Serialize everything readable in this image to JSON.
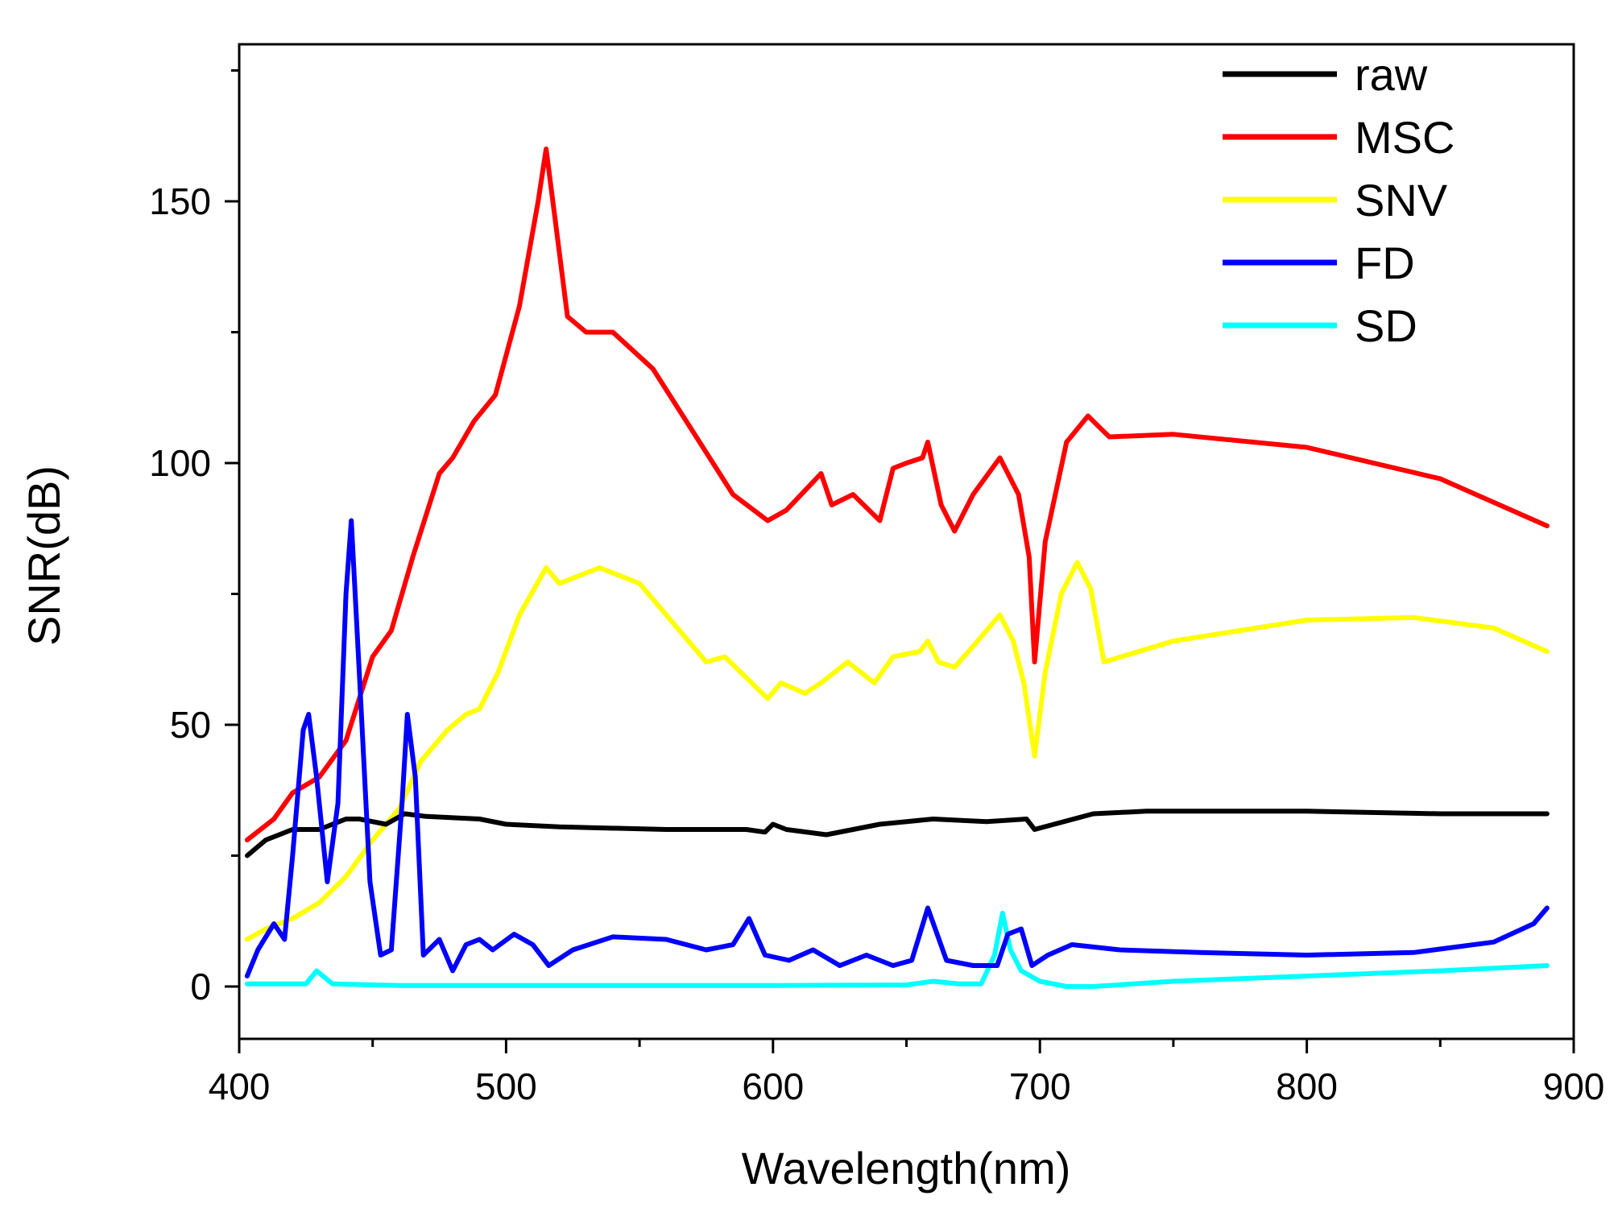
{
  "chart_data": {
    "type": "line",
    "title": "",
    "xlabel": "Wavelength(nm)",
    "ylabel": "SNR(dB)",
    "xlim": [
      400,
      900
    ],
    "ylim": [
      -10,
      180
    ],
    "xticks": [
      400,
      500,
      600,
      700,
      800,
      900
    ],
    "yticks": [
      0,
      50,
      100,
      150
    ],
    "xtick_labels": [
      "400",
      "500",
      "600",
      "700",
      "800",
      "900"
    ],
    "ytick_labels": [
      "0",
      "50",
      "100",
      "150"
    ],
    "legend_position": "top-right",
    "series": [
      {
        "name": "raw",
        "color": "#000000",
        "points": [
          [
            403,
            25
          ],
          [
            410,
            28
          ],
          [
            420,
            30
          ],
          [
            430,
            30
          ],
          [
            440,
            32
          ],
          [
            445,
            32
          ],
          [
            455,
            31
          ],
          [
            462,
            33
          ],
          [
            470,
            32.5
          ],
          [
            490,
            32
          ],
          [
            500,
            31
          ],
          [
            520,
            30.5
          ],
          [
            560,
            30
          ],
          [
            590,
            30
          ],
          [
            597,
            29.5
          ],
          [
            600,
            31
          ],
          [
            605,
            30
          ],
          [
            620,
            29
          ],
          [
            640,
            31
          ],
          [
            660,
            32
          ],
          [
            680,
            31.5
          ],
          [
            695,
            32
          ],
          [
            698,
            30
          ],
          [
            720,
            33
          ],
          [
            740,
            33.5
          ],
          [
            800,
            33.5
          ],
          [
            850,
            33
          ],
          [
            890,
            33
          ]
        ]
      },
      {
        "name": "MSC",
        "color": "#ff0000",
        "points": [
          [
            403,
            28
          ],
          [
            413,
            32
          ],
          [
            420,
            37
          ],
          [
            430,
            40
          ],
          [
            440,
            47
          ],
          [
            445,
            55
          ],
          [
            450,
            63
          ],
          [
            457,
            68
          ],
          [
            465,
            82
          ],
          [
            475,
            98
          ],
          [
            480,
            101
          ],
          [
            488,
            108
          ],
          [
            496,
            113
          ],
          [
            505,
            130
          ],
          [
            512,
            150
          ],
          [
            515,
            160
          ],
          [
            518,
            148
          ],
          [
            523,
            128
          ],
          [
            530,
            125
          ],
          [
            540,
            125
          ],
          [
            555,
            118
          ],
          [
            570,
            106
          ],
          [
            585,
            94
          ],
          [
            598,
            89
          ],
          [
            605,
            91
          ],
          [
            618,
            98
          ],
          [
            622,
            92
          ],
          [
            630,
            94
          ],
          [
            640,
            89
          ],
          [
            645,
            99
          ],
          [
            650,
            100
          ],
          [
            656,
            101
          ],
          [
            658,
            104
          ],
          [
            663,
            92
          ],
          [
            668,
            87
          ],
          [
            675,
            94
          ],
          [
            685,
            101
          ],
          [
            692,
            94
          ],
          [
            696,
            82
          ],
          [
            698,
            62
          ],
          [
            702,
            85
          ],
          [
            710,
            104
          ],
          [
            718,
            109
          ],
          [
            722,
            107
          ],
          [
            726,
            105
          ],
          [
            750,
            105.5
          ],
          [
            800,
            103
          ],
          [
            850,
            97
          ],
          [
            890,
            88
          ]
        ]
      },
      {
        "name": "SNV",
        "color": "#ffff00",
        "points": [
          [
            403,
            9
          ],
          [
            410,
            11
          ],
          [
            420,
            13
          ],
          [
            430,
            16
          ],
          [
            440,
            21
          ],
          [
            450,
            28
          ],
          [
            460,
            34
          ],
          [
            468,
            43
          ],
          [
            478,
            49
          ],
          [
            485,
            52
          ],
          [
            490,
            53
          ],
          [
            497,
            60
          ],
          [
            505,
            71
          ],
          [
            515,
            80
          ],
          [
            520,
            77
          ],
          [
            535,
            80
          ],
          [
            550,
            77
          ],
          [
            565,
            68
          ],
          [
            575,
            62
          ],
          [
            582,
            63
          ],
          [
            590,
            59
          ],
          [
            598,
            55
          ],
          [
            603,
            58
          ],
          [
            612,
            56
          ],
          [
            618,
            58
          ],
          [
            628,
            62
          ],
          [
            638,
            58
          ],
          [
            645,
            63
          ],
          [
            655,
            64
          ],
          [
            658,
            66
          ],
          [
            662,
            62
          ],
          [
            668,
            61
          ],
          [
            675,
            65
          ],
          [
            685,
            71
          ],
          [
            690,
            66
          ],
          [
            694,
            58
          ],
          [
            698,
            44
          ],
          [
            702,
            60
          ],
          [
            708,
            75
          ],
          [
            714,
            81
          ],
          [
            719,
            76
          ],
          [
            724,
            62
          ],
          [
            750,
            66
          ],
          [
            800,
            70
          ],
          [
            840,
            70.5
          ],
          [
            870,
            68.5
          ],
          [
            890,
            64
          ]
        ]
      },
      {
        "name": "FD",
        "color": "#0000ff",
        "points": [
          [
            403,
            2
          ],
          [
            407,
            7
          ],
          [
            413,
            12
          ],
          [
            417,
            9
          ],
          [
            420,
            25
          ],
          [
            424,
            49
          ],
          [
            426,
            52
          ],
          [
            429,
            40
          ],
          [
            433,
            20
          ],
          [
            437,
            35
          ],
          [
            440,
            75
          ],
          [
            442,
            89
          ],
          [
            445,
            60
          ],
          [
            449,
            20
          ],
          [
            453,
            6
          ],
          [
            457,
            7
          ],
          [
            461,
            35
          ],
          [
            463,
            52
          ],
          [
            466,
            40
          ],
          [
            469,
            6
          ],
          [
            475,
            9
          ],
          [
            480,
            3
          ],
          [
            485,
            8
          ],
          [
            490,
            9
          ],
          [
            495,
            7
          ],
          [
            503,
            10
          ],
          [
            510,
            8
          ],
          [
            516,
            4
          ],
          [
            525,
            7
          ],
          [
            540,
            9.5
          ],
          [
            560,
            9
          ],
          [
            575,
            7
          ],
          [
            585,
            8
          ],
          [
            591,
            13
          ],
          [
            597,
            6
          ],
          [
            606,
            5
          ],
          [
            615,
            7
          ],
          [
            625,
            4
          ],
          [
            635,
            6
          ],
          [
            645,
            4
          ],
          [
            652,
            5
          ],
          [
            658,
            15
          ],
          [
            665,
            5
          ],
          [
            675,
            4
          ],
          [
            684,
            4
          ],
          [
            688,
            10
          ],
          [
            693,
            11
          ],
          [
            697,
            4
          ],
          [
            703,
            6
          ],
          [
            712,
            8
          ],
          [
            730,
            7
          ],
          [
            760,
            6.5
          ],
          [
            800,
            6
          ],
          [
            840,
            6.5
          ],
          [
            870,
            8.5
          ],
          [
            885,
            12
          ],
          [
            890,
            15
          ]
        ]
      },
      {
        "name": "SD",
        "color": "#00ffff",
        "points": [
          [
            403,
            0.5
          ],
          [
            425,
            0.5
          ],
          [
            429,
            3
          ],
          [
            435,
            0.5
          ],
          [
            460,
            0.2
          ],
          [
            500,
            0.2
          ],
          [
            550,
            0.2
          ],
          [
            600,
            0.2
          ],
          [
            650,
            0.3
          ],
          [
            660,
            1
          ],
          [
            670,
            0.5
          ],
          [
            678,
            0.5
          ],
          [
            683,
            6
          ],
          [
            686,
            14
          ],
          [
            689,
            7
          ],
          [
            693,
            3
          ],
          [
            700,
            1
          ],
          [
            710,
            0
          ],
          [
            720,
            0
          ],
          [
            750,
            1
          ],
          [
            800,
            2
          ],
          [
            850,
            3
          ],
          [
            890,
            4
          ]
        ]
      }
    ]
  }
}
